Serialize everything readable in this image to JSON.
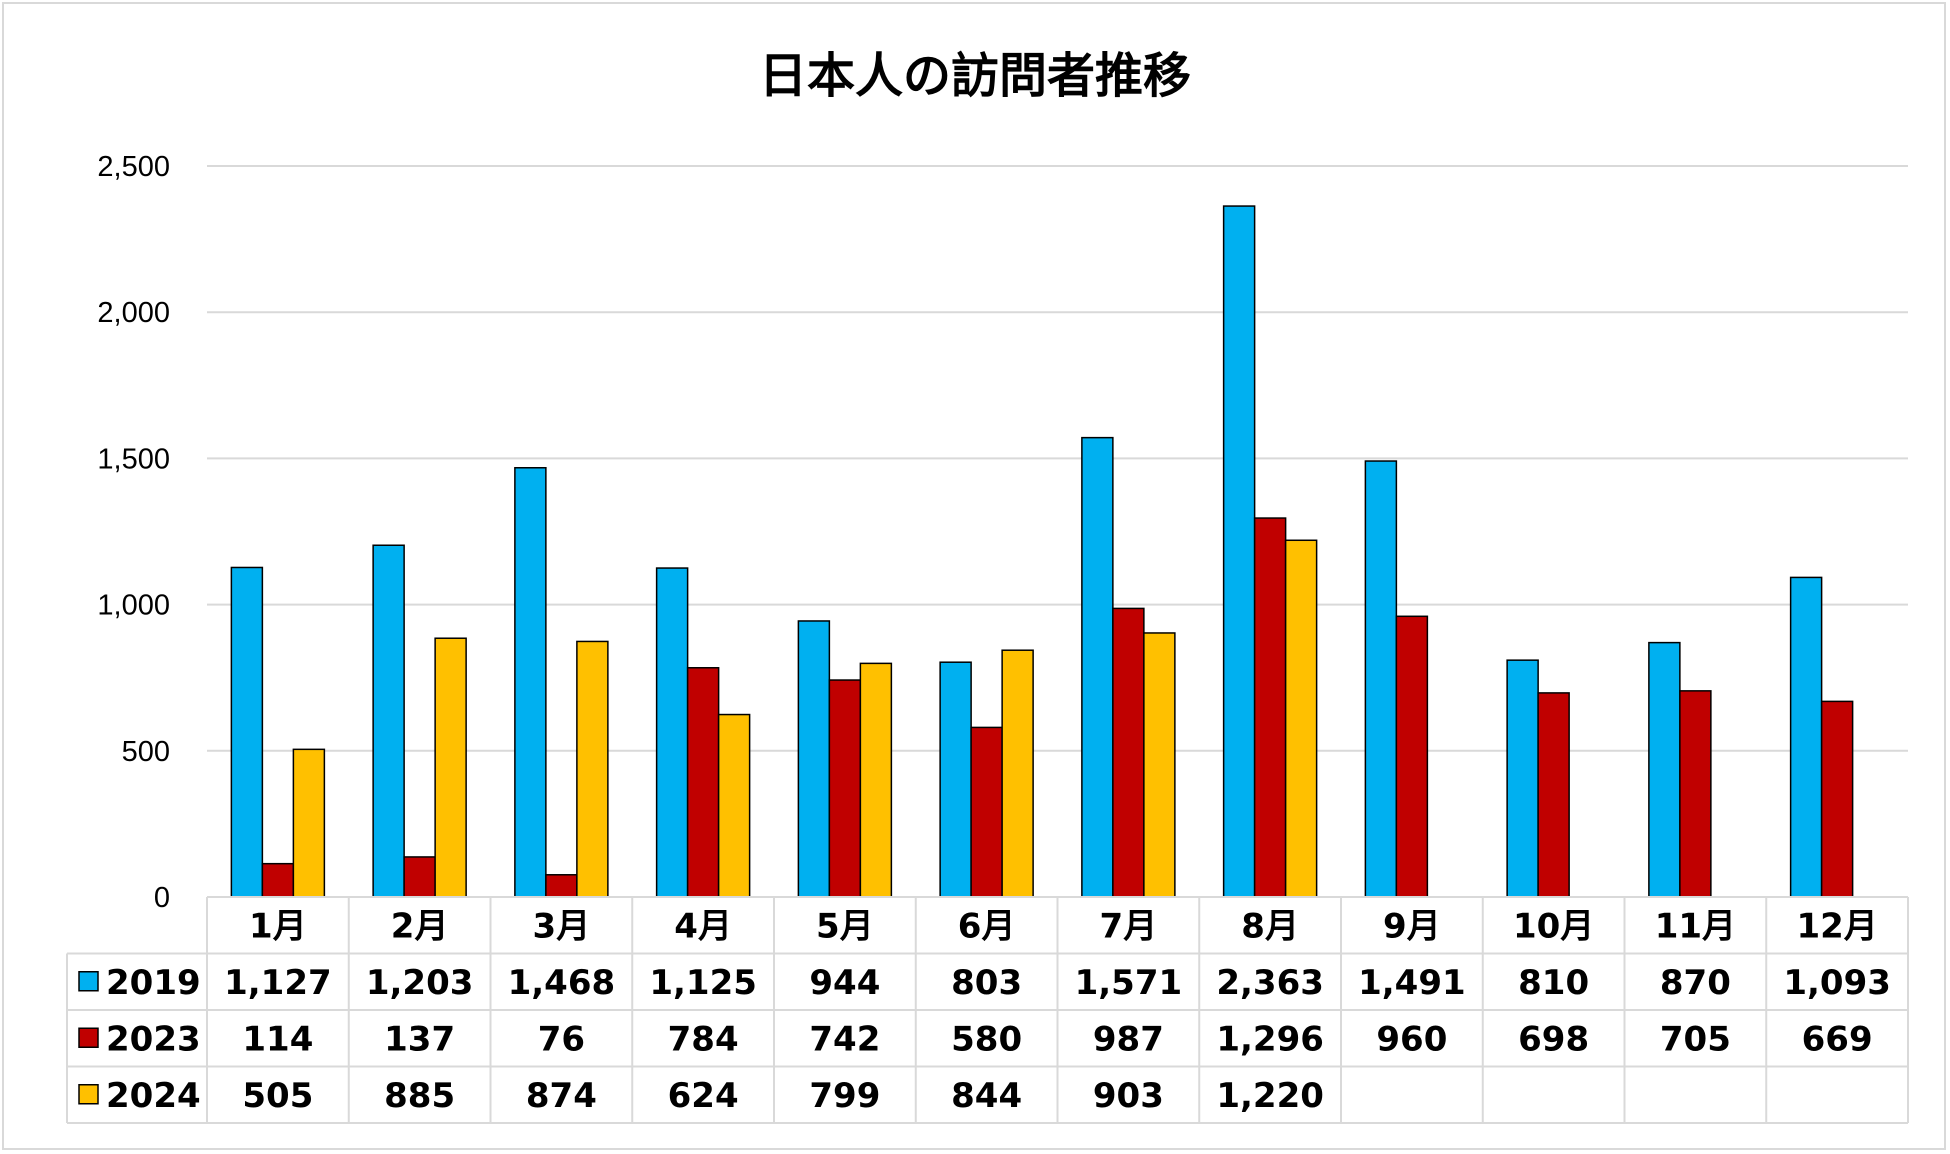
{
  "chart_data": {
    "type": "bar",
    "title": "日本人の訪問者推移",
    "xlabel": "",
    "ylabel": "",
    "ylim": [
      0,
      2500
    ],
    "yticks": [
      "0",
      "500",
      "1,000",
      "1,500",
      "2,000",
      "2,500"
    ],
    "grid": true,
    "legend": "data-table-left",
    "categories": [
      "1月",
      "2月",
      "3月",
      "4月",
      "5月",
      "6月",
      "7月",
      "8月",
      "9月",
      "10月",
      "11月",
      "12月"
    ],
    "series": [
      {
        "name": "2019",
        "color": "#00B0F0",
        "values": [
          1127,
          1203,
          1468,
          1125,
          944,
          803,
          1571,
          2363,
          1491,
          810,
          870,
          1093
        ],
        "labels": [
          "1,127",
          "1,203",
          "1,468",
          "1,125",
          "944",
          "803",
          "1,571",
          "2,363",
          "1,491",
          "810",
          "870",
          "1,093"
        ]
      },
      {
        "name": "2023",
        "color": "#C00000",
        "values": [
          114,
          137,
          76,
          784,
          742,
          580,
          987,
          1296,
          960,
          698,
          705,
          669
        ],
        "labels": [
          "114",
          "137",
          "76",
          "784",
          "742",
          "580",
          "987",
          "1,296",
          "960",
          "698",
          "705",
          "669"
        ]
      },
      {
        "name": "2024",
        "color": "#FFC000",
        "values": [
          505,
          885,
          874,
          624,
          799,
          844,
          903,
          1220,
          null,
          null,
          null,
          null
        ],
        "labels": [
          "505",
          "885",
          "874",
          "624",
          "799",
          "844",
          "903",
          "1,220",
          "",
          "",
          "",
          ""
        ]
      }
    ]
  }
}
